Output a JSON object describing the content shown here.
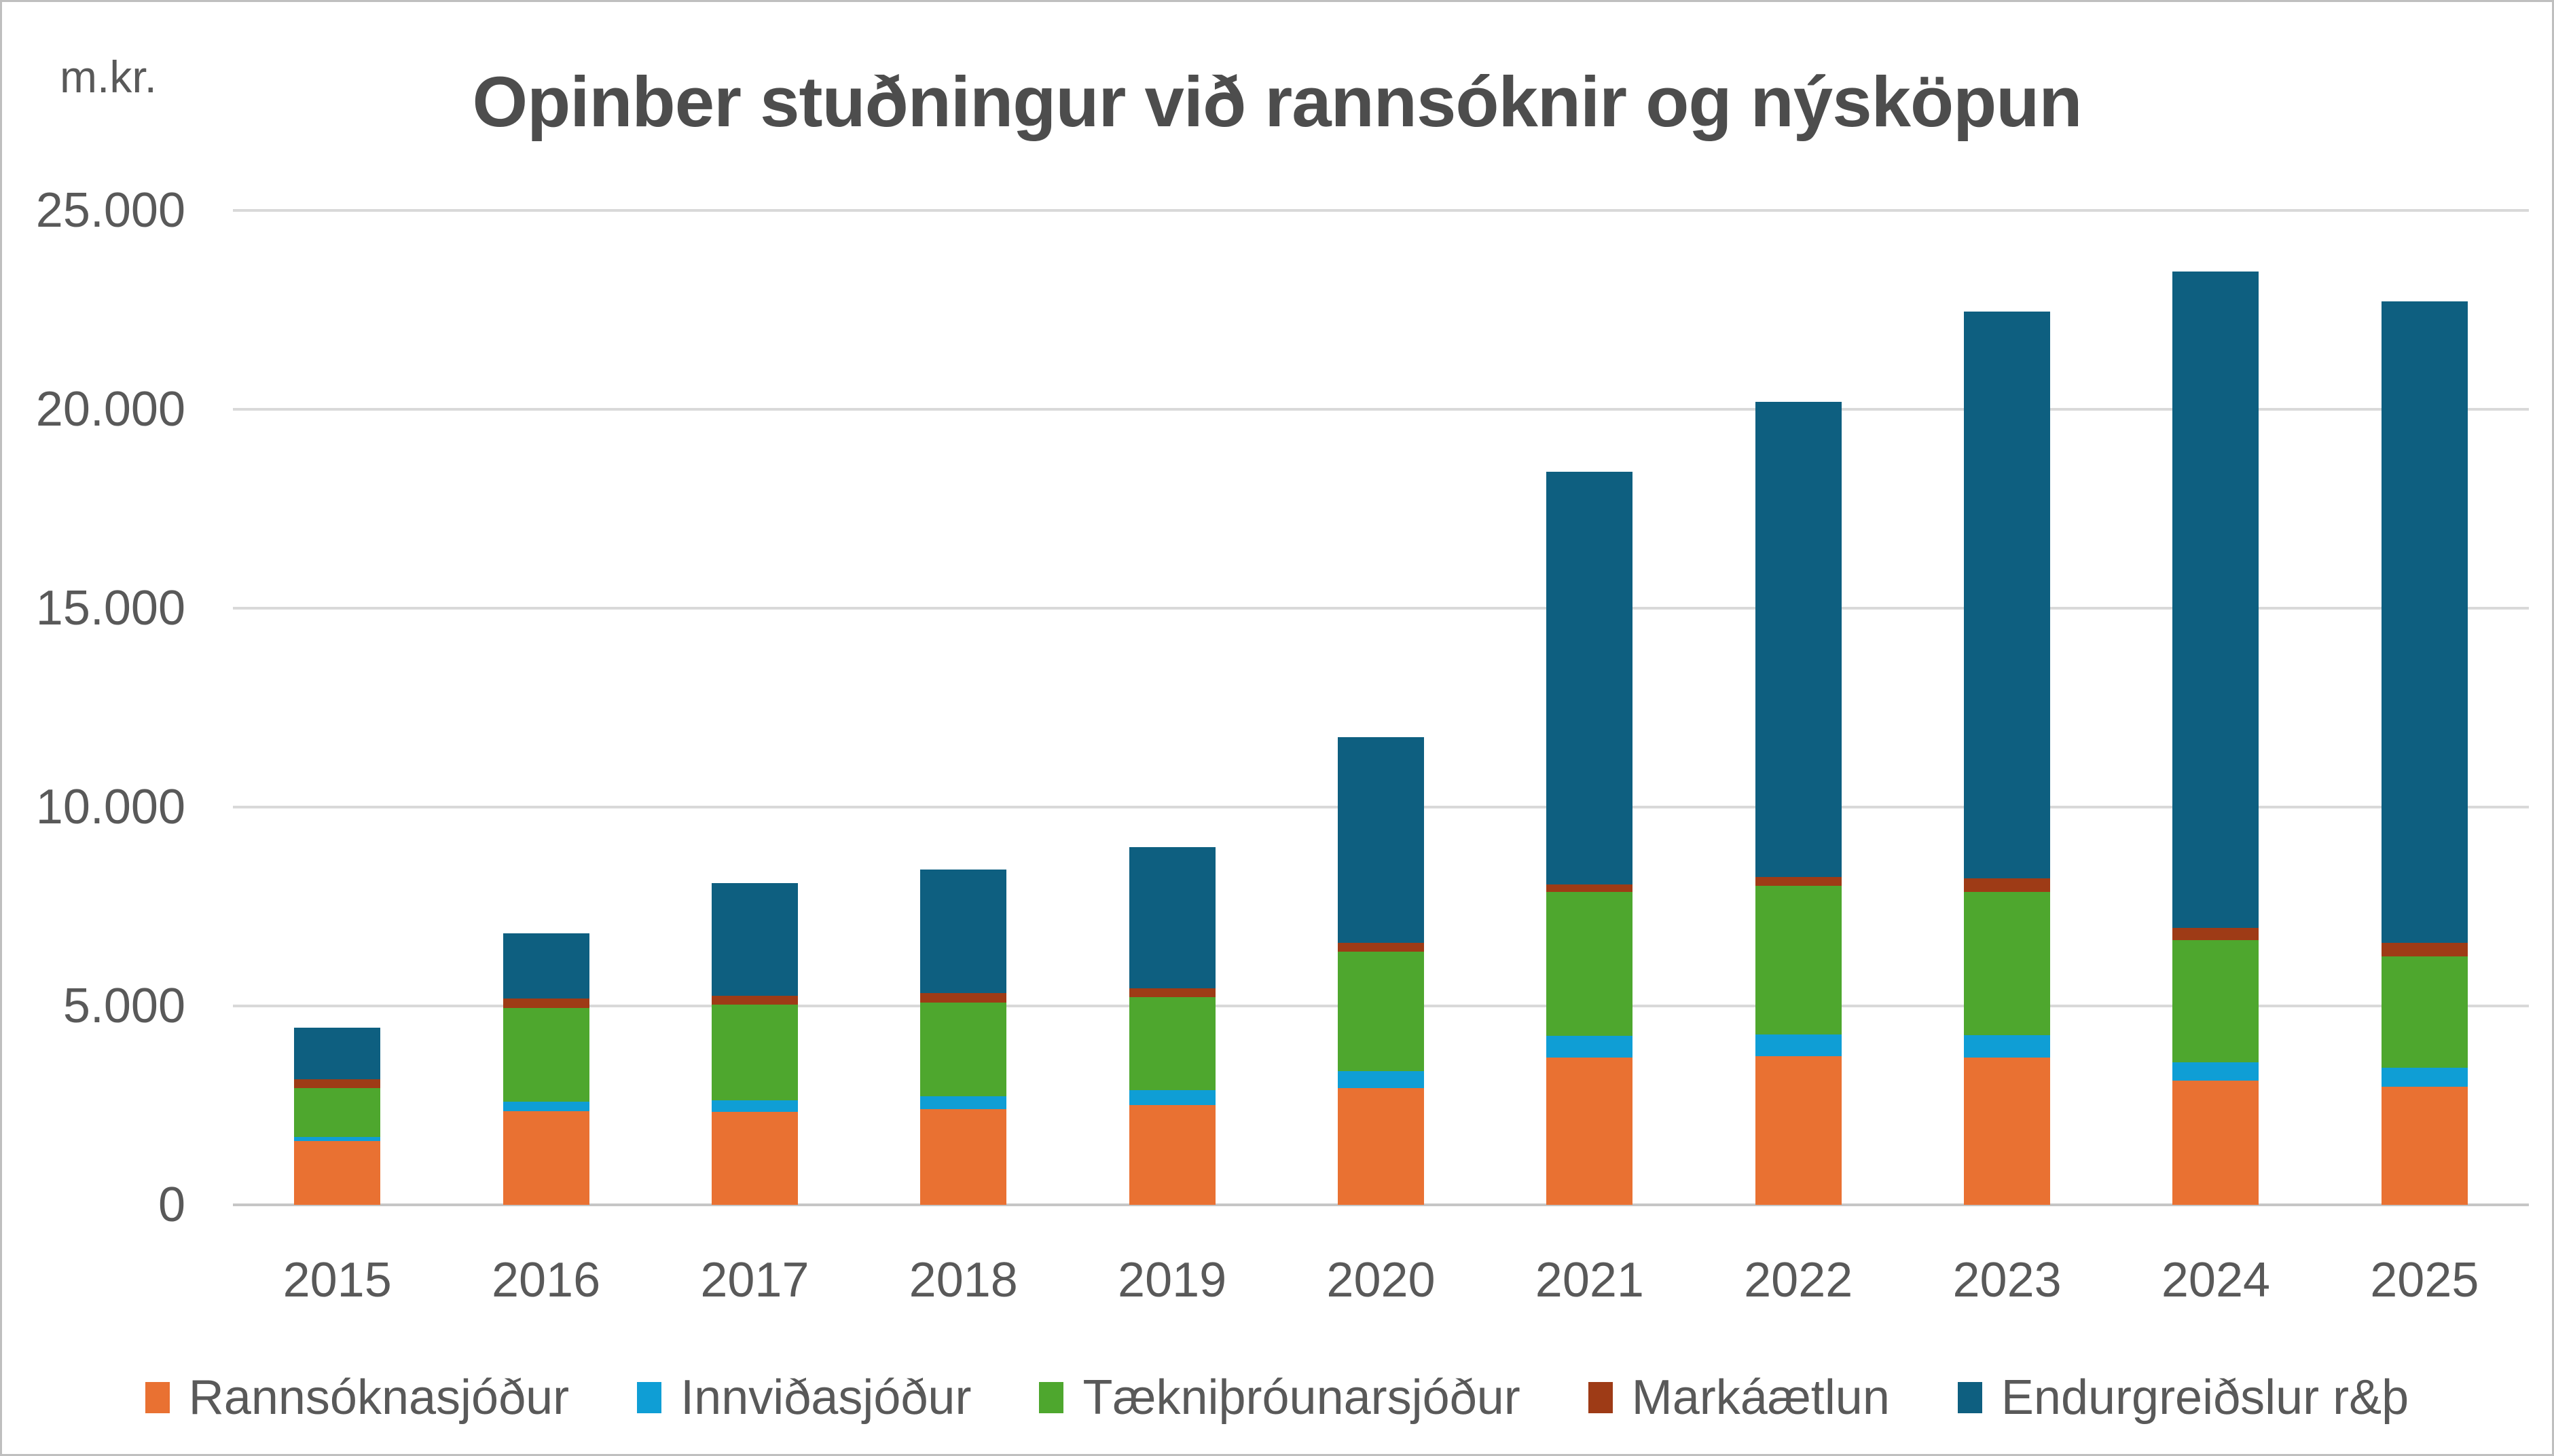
{
  "title": "Opinber stuðningur við rannsóknir og nýsköpun",
  "colors": {
    "orange": "#E97132",
    "light_blue": "#0F9ED5",
    "green": "#4EA72E",
    "brown": "#9E3B16",
    "teal": "#0E5F80",
    "gridline": "#D9D9D9",
    "axis_text": "#595959",
    "title_text": "#4D4D4D"
  },
  "chart_data": {
    "type": "bar",
    "stacked": true,
    "title": "Opinber stuðningur við rannsóknir og nýsköpun",
    "ylabel": "m.kr.",
    "xlabel": "",
    "grid": true,
    "legend_position": "bottom",
    "ylim": [
      0,
      25000
    ],
    "ytick_interval": 5000,
    "ytick_labels": [
      "0",
      "5.000",
      "10.000",
      "15.000",
      "20.000",
      "25.000"
    ],
    "categories": [
      "2015",
      "2016",
      "2017",
      "2018",
      "2019",
      "2020",
      "2021",
      "2022",
      "2023",
      "2024",
      "2025"
    ],
    "series": [
      {
        "name": "Rannsóknasjóður",
        "color_key": "orange",
        "values": [
          1600,
          2350,
          2340,
          2400,
          2510,
          2940,
          3710,
          3730,
          3700,
          3120,
          2970
        ]
      },
      {
        "name": "Innviðasjóður",
        "color_key": "light_blue",
        "values": [
          110,
          240,
          280,
          330,
          370,
          420,
          540,
          560,
          570,
          470,
          470
        ]
      },
      {
        "name": "Tækniþróunarsjóður",
        "color_key": "green",
        "values": [
          1230,
          2360,
          2420,
          2360,
          2340,
          3000,
          3610,
          3730,
          3590,
          3060,
          2810
        ]
      },
      {
        "name": "Markáætlun",
        "color_key": "brown",
        "values": [
          220,
          240,
          220,
          240,
          220,
          230,
          200,
          220,
          350,
          320,
          330
        ]
      },
      {
        "name": "Endurgreiðslur r&þ",
        "color_key": "teal",
        "values": [
          1300,
          1630,
          2830,
          3100,
          3560,
          5170,
          10370,
          11940,
          14240,
          16500,
          16140
        ]
      }
    ],
    "totals": [
      4460,
      6820,
      8090,
      8430,
      9000,
      11760,
      18430,
      20180,
      22450,
      23470,
      22720
    ]
  }
}
